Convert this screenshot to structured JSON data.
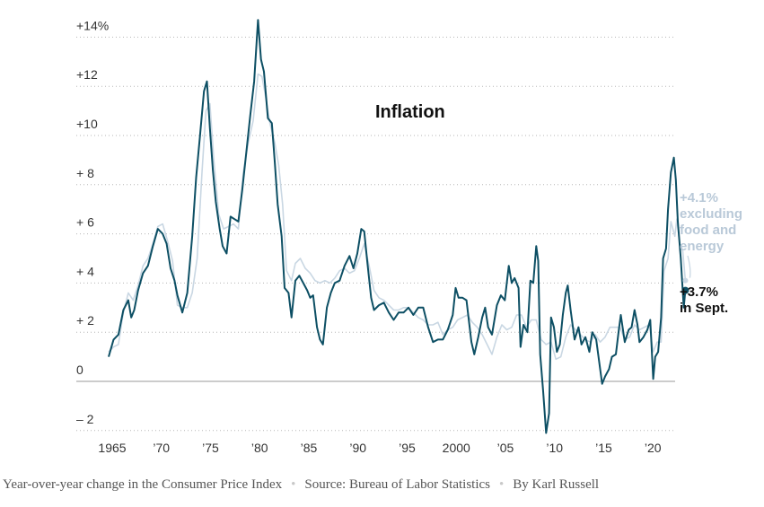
{
  "chart_data": {
    "type": "line",
    "title": "Inflation",
    "ylim": [
      -3,
      15
    ],
    "xlim": [
      1964.5,
      2023.8
    ],
    "y_ticks": [
      {
        "value": 14,
        "label": "+14%"
      },
      {
        "value": 12,
        "label": "+12"
      },
      {
        "value": 10,
        "label": "+10"
      },
      {
        "value": 8,
        "label": "+ 8"
      },
      {
        "value": 6,
        "label": "+ 6"
      },
      {
        "value": 4,
        "label": "+ 4"
      },
      {
        "value": 2,
        "label": "+ 2"
      },
      {
        "value": 0,
        "label": "0"
      },
      {
        "value": -2,
        "label": "– 2"
      }
    ],
    "x_ticks": [
      {
        "value": 1965,
        "label": "1965"
      },
      {
        "value": 1970,
        "label": "’70"
      },
      {
        "value": 1975,
        "label": "’75"
      },
      {
        "value": 1980,
        "label": "’80"
      },
      {
        "value": 1985,
        "label": "’85"
      },
      {
        "value": 1990,
        "label": "’90"
      },
      {
        "value": 1995,
        "label": "’95"
      },
      {
        "value": 2000,
        "label": "2000"
      },
      {
        "value": 2005,
        "label": "’05"
      },
      {
        "value": 2010,
        "label": "’10"
      },
      {
        "value": 2015,
        "label": "’15"
      },
      {
        "value": 2020,
        "label": "’20"
      }
    ],
    "grid": true,
    "series": [
      {
        "id": "cpi",
        "color": "#0d4f64",
        "annotation": [
          "+3.7%",
          "in Sept."
        ],
        "points": [
          [
            1965.0,
            1.0
          ],
          [
            1965.5,
            1.7
          ],
          [
            1966.0,
            1.9
          ],
          [
            1966.5,
            2.9
          ],
          [
            1967.0,
            3.3
          ],
          [
            1967.3,
            2.6
          ],
          [
            1967.6,
            2.9
          ],
          [
            1968.0,
            3.7
          ],
          [
            1968.5,
            4.4
          ],
          [
            1969.0,
            4.7
          ],
          [
            1969.5,
            5.5
          ],
          [
            1970.0,
            6.2
          ],
          [
            1970.5,
            6.0
          ],
          [
            1970.9,
            5.6
          ],
          [
            1971.3,
            4.6
          ],
          [
            1971.7,
            4.1
          ],
          [
            1972.0,
            3.5
          ],
          [
            1972.5,
            2.8
          ],
          [
            1973.0,
            3.6
          ],
          [
            1973.5,
            5.9
          ],
          [
            1973.9,
            8.3
          ],
          [
            1974.3,
            10.0
          ],
          [
            1974.7,
            11.8
          ],
          [
            1975.0,
            12.2
          ],
          [
            1975.3,
            10.3
          ],
          [
            1975.6,
            8.6
          ],
          [
            1975.9,
            7.3
          ],
          [
            1976.3,
            6.2
          ],
          [
            1976.6,
            5.5
          ],
          [
            1977.0,
            5.2
          ],
          [
            1977.4,
            6.7
          ],
          [
            1977.8,
            6.6
          ],
          [
            1978.2,
            6.5
          ],
          [
            1978.6,
            7.8
          ],
          [
            1979.0,
            9.3
          ],
          [
            1979.4,
            10.8
          ],
          [
            1979.8,
            12.2
          ],
          [
            1980.2,
            14.7
          ],
          [
            1980.5,
            13.1
          ],
          [
            1980.8,
            12.6
          ],
          [
            1981.2,
            10.7
          ],
          [
            1981.6,
            10.5
          ],
          [
            1981.9,
            8.9
          ],
          [
            1982.2,
            7.2
          ],
          [
            1982.6,
            5.9
          ],
          [
            1982.9,
            3.8
          ],
          [
            1983.3,
            3.6
          ],
          [
            1983.6,
            2.6
          ],
          [
            1984.0,
            4.1
          ],
          [
            1984.4,
            4.3
          ],
          [
            1984.8,
            4.0
          ],
          [
            1985.2,
            3.7
          ],
          [
            1985.5,
            3.4
          ],
          [
            1985.8,
            3.5
          ],
          [
            1986.2,
            2.2
          ],
          [
            1986.5,
            1.7
          ],
          [
            1986.8,
            1.5
          ],
          [
            1987.2,
            3.0
          ],
          [
            1987.6,
            3.6
          ],
          [
            1988.0,
            4.0
          ],
          [
            1988.5,
            4.1
          ],
          [
            1989.0,
            4.7
          ],
          [
            1989.5,
            5.1
          ],
          [
            1989.9,
            4.6
          ],
          [
            1990.3,
            5.2
          ],
          [
            1990.7,
            6.2
          ],
          [
            1991.0,
            6.1
          ],
          [
            1991.3,
            4.9
          ],
          [
            1991.7,
            3.4
          ],
          [
            1992.0,
            2.9
          ],
          [
            1992.5,
            3.1
          ],
          [
            1993.0,
            3.2
          ],
          [
            1993.5,
            2.8
          ],
          [
            1994.0,
            2.5
          ],
          [
            1994.5,
            2.8
          ],
          [
            1995.0,
            2.8
          ],
          [
            1995.5,
            3.0
          ],
          [
            1996.0,
            2.7
          ],
          [
            1996.5,
            3.0
          ],
          [
            1997.0,
            3.0
          ],
          [
            1997.5,
            2.2
          ],
          [
            1998.0,
            1.6
          ],
          [
            1998.5,
            1.7
          ],
          [
            1999.0,
            1.7
          ],
          [
            1999.5,
            2.1
          ],
          [
            2000.0,
            2.7
          ],
          [
            2000.3,
            3.8
          ],
          [
            2000.6,
            3.4
          ],
          [
            2001.0,
            3.4
          ],
          [
            2001.4,
            3.3
          ],
          [
            2001.9,
            1.6
          ],
          [
            2002.2,
            1.1
          ],
          [
            2002.6,
            1.8
          ],
          [
            2003.0,
            2.6
          ],
          [
            2003.3,
            3.0
          ],
          [
            2003.6,
            2.2
          ],
          [
            2004.0,
            1.9
          ],
          [
            2004.5,
            3.1
          ],
          [
            2004.9,
            3.5
          ],
          [
            2005.3,
            3.3
          ],
          [
            2005.7,
            4.7
          ],
          [
            2006.0,
            4.0
          ],
          [
            2006.3,
            4.2
          ],
          [
            2006.7,
            3.8
          ],
          [
            2006.9,
            1.4
          ],
          [
            2007.2,
            2.3
          ],
          [
            2007.6,
            2.0
          ],
          [
            2007.9,
            4.1
          ],
          [
            2008.2,
            4.0
          ],
          [
            2008.5,
            5.5
          ],
          [
            2008.7,
            4.9
          ],
          [
            2008.9,
            1.1
          ],
          [
            2009.2,
            -0.4
          ],
          [
            2009.5,
            -2.1
          ],
          [
            2009.8,
            -1.3
          ],
          [
            2010.0,
            2.6
          ],
          [
            2010.3,
            2.2
          ],
          [
            2010.6,
            1.2
          ],
          [
            2010.9,
            1.5
          ],
          [
            2011.2,
            2.7
          ],
          [
            2011.5,
            3.6
          ],
          [
            2011.7,
            3.9
          ],
          [
            2012.0,
            2.9
          ],
          [
            2012.4,
            1.7
          ],
          [
            2012.8,
            2.2
          ],
          [
            2013.1,
            1.5
          ],
          [
            2013.5,
            1.8
          ],
          [
            2013.9,
            1.2
          ],
          [
            2014.2,
            2.0
          ],
          [
            2014.6,
            1.7
          ],
          [
            2014.9,
            0.8
          ],
          [
            2015.2,
            -0.1
          ],
          [
            2015.5,
            0.2
          ],
          [
            2015.9,
            0.5
          ],
          [
            2016.2,
            1.0
          ],
          [
            2016.6,
            1.1
          ],
          [
            2016.9,
            2.1
          ],
          [
            2017.1,
            2.7
          ],
          [
            2017.5,
            1.6
          ],
          [
            2017.9,
            2.1
          ],
          [
            2018.2,
            2.2
          ],
          [
            2018.5,
            2.9
          ],
          [
            2018.8,
            2.3
          ],
          [
            2019.0,
            1.6
          ],
          [
            2019.4,
            1.8
          ],
          [
            2019.8,
            2.1
          ],
          [
            2020.1,
            2.5
          ],
          [
            2020.4,
            0.1
          ],
          [
            2020.6,
            1.0
          ],
          [
            2020.9,
            1.2
          ],
          [
            2021.2,
            2.6
          ],
          [
            2021.4,
            5.0
          ],
          [
            2021.7,
            5.4
          ],
          [
            2021.9,
            7.0
          ],
          [
            2022.2,
            8.5
          ],
          [
            2022.5,
            9.1
          ],
          [
            2022.7,
            8.2
          ],
          [
            2022.9,
            6.5
          ],
          [
            2023.2,
            5.0
          ],
          [
            2023.5,
            3.0
          ],
          [
            2023.67,
            3.7
          ]
        ]
      },
      {
        "id": "core",
        "color": "#c9d7e3",
        "annotation": [
          "+4.1%",
          "excluding",
          "food and",
          "energy"
        ],
        "points": [
          [
            1965.0,
            1.2
          ],
          [
            1965.5,
            1.4
          ],
          [
            1966.0,
            1.5
          ],
          [
            1966.5,
            2.8
          ],
          [
            1967.0,
            3.6
          ],
          [
            1967.5,
            3.3
          ],
          [
            1968.0,
            3.9
          ],
          [
            1968.5,
            4.7
          ],
          [
            1969.0,
            5.0
          ],
          [
            1969.5,
            5.6
          ],
          [
            1970.0,
            6.3
          ],
          [
            1970.5,
            6.4
          ],
          [
            1971.0,
            5.7
          ],
          [
            1971.5,
            4.9
          ],
          [
            1972.0,
            3.1
          ],
          [
            1972.5,
            3.0
          ],
          [
            1973.0,
            3.0
          ],
          [
            1973.5,
            3.6
          ],
          [
            1974.0,
            5.0
          ],
          [
            1974.5,
            8.5
          ],
          [
            1974.9,
            11.0
          ],
          [
            1975.3,
            11.3
          ],
          [
            1975.7,
            9.0
          ],
          [
            1976.2,
            6.8
          ],
          [
            1976.7,
            6.2
          ],
          [
            1977.2,
            6.3
          ],
          [
            1977.7,
            6.4
          ],
          [
            1978.2,
            6.2
          ],
          [
            1978.7,
            8.5
          ],
          [
            1979.2,
            9.7
          ],
          [
            1979.7,
            10.6
          ],
          [
            1980.2,
            12.5
          ],
          [
            1980.6,
            12.4
          ],
          [
            1981.0,
            11.5
          ],
          [
            1981.4,
            10.5
          ],
          [
            1981.9,
            9.7
          ],
          [
            1982.3,
            8.8
          ],
          [
            1982.7,
            7.2
          ],
          [
            1983.1,
            4.5
          ],
          [
            1983.6,
            4.1
          ],
          [
            1984.0,
            4.8
          ],
          [
            1984.5,
            5.0
          ],
          [
            1985.0,
            4.6
          ],
          [
            1985.5,
            4.4
          ],
          [
            1986.0,
            4.1
          ],
          [
            1986.5,
            4.0
          ],
          [
            1987.0,
            4.1
          ],
          [
            1987.5,
            4.0
          ],
          [
            1988.0,
            4.2
          ],
          [
            1988.5,
            4.5
          ],
          [
            1989.0,
            4.6
          ],
          [
            1989.5,
            4.4
          ],
          [
            1990.0,
            4.5
          ],
          [
            1990.5,
            5.0
          ],
          [
            1991.0,
            5.6
          ],
          [
            1991.5,
            4.7
          ],
          [
            1992.0,
            3.7
          ],
          [
            1992.5,
            3.4
          ],
          [
            1993.0,
            3.3
          ],
          [
            1993.5,
            3.1
          ],
          [
            1994.0,
            2.9
          ],
          [
            1994.5,
            2.9
          ],
          [
            1995.0,
            3.0
          ],
          [
            1995.5,
            3.0
          ],
          [
            1996.0,
            2.8
          ],
          [
            1996.5,
            2.6
          ],
          [
            1997.0,
            2.5
          ],
          [
            1997.5,
            2.3
          ],
          [
            1998.0,
            2.3
          ],
          [
            1998.5,
            2.4
          ],
          [
            1999.0,
            1.9
          ],
          [
            1999.5,
            2.1
          ],
          [
            2000.0,
            2.2
          ],
          [
            2000.5,
            2.5
          ],
          [
            2001.0,
            2.6
          ],
          [
            2001.5,
            2.7
          ],
          [
            2002.0,
            2.4
          ],
          [
            2002.5,
            2.2
          ],
          [
            2003.0,
            1.9
          ],
          [
            2003.5,
            1.5
          ],
          [
            2004.0,
            1.1
          ],
          [
            2004.5,
            1.8
          ],
          [
            2005.0,
            2.3
          ],
          [
            2005.5,
            2.1
          ],
          [
            2006.0,
            2.2
          ],
          [
            2006.5,
            2.7
          ],
          [
            2007.0,
            2.7
          ],
          [
            2007.5,
            2.2
          ],
          [
            2008.0,
            2.5
          ],
          [
            2008.5,
            2.5
          ],
          [
            2009.0,
            1.7
          ],
          [
            2009.5,
            1.5
          ],
          [
            2010.0,
            1.6
          ],
          [
            2010.5,
            0.9
          ],
          [
            2011.0,
            1.0
          ],
          [
            2011.5,
            1.8
          ],
          [
            2012.0,
            2.3
          ],
          [
            2012.5,
            2.1
          ],
          [
            2013.0,
            1.9
          ],
          [
            2013.5,
            1.7
          ],
          [
            2014.0,
            1.6
          ],
          [
            2014.5,
            1.9
          ],
          [
            2015.0,
            1.6
          ],
          [
            2015.5,
            1.8
          ],
          [
            2016.0,
            2.2
          ],
          [
            2016.5,
            2.2
          ],
          [
            2017.0,
            2.2
          ],
          [
            2017.5,
            1.7
          ],
          [
            2018.0,
            1.8
          ],
          [
            2018.5,
            2.3
          ],
          [
            2019.0,
            2.1
          ],
          [
            2019.5,
            2.2
          ],
          [
            2020.0,
            2.3
          ],
          [
            2020.4,
            1.2
          ],
          [
            2020.8,
            1.6
          ],
          [
            2021.2,
            1.6
          ],
          [
            2021.5,
            4.5
          ],
          [
            2021.9,
            5.0
          ],
          [
            2022.2,
            6.5
          ],
          [
            2022.6,
            5.9
          ],
          [
            2022.8,
            6.6
          ],
          [
            2023.1,
            5.6
          ],
          [
            2023.4,
            5.3
          ],
          [
            2023.67,
            4.1
          ]
        ]
      }
    ]
  },
  "footer": {
    "description": "Year-over-year change in the Consumer Price Index",
    "source": "Source: Bureau of Labor Statistics",
    "byline": "By Karl Russell",
    "separator": "•"
  }
}
